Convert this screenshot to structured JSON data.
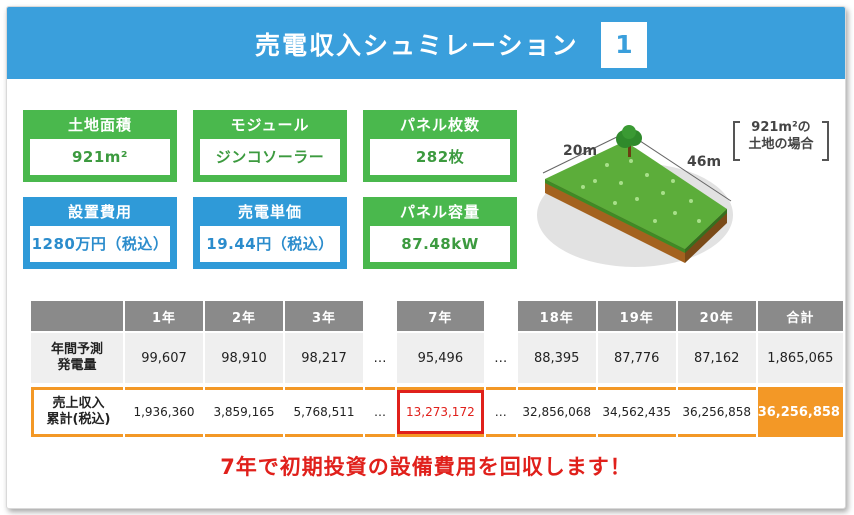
{
  "header": {
    "title": "売電収入シュミレーション",
    "number": "1"
  },
  "boxes": {
    "land_area": {
      "label": "土地面積",
      "value": "921m²"
    },
    "module": {
      "label": "モジュール",
      "value": "ジンコソーラー"
    },
    "panel_count": {
      "label": "パネル枚数",
      "value": "282枚"
    },
    "install_cost": {
      "label": "設置費用",
      "value": "1280万円（税込）"
    },
    "unit_price": {
      "label": "売電単価",
      "value": "19.44円（税込）"
    },
    "panel_capacity": {
      "label": "パネル容量",
      "value": "87.48kW"
    }
  },
  "illustration": {
    "width_label": "20m",
    "length_label": "46m",
    "note_line1": "921m²の",
    "note_line2": "土地の場合"
  },
  "table": {
    "headers": [
      "1年",
      "2年",
      "3年",
      "7年",
      "18年",
      "19年",
      "20年",
      "合計"
    ],
    "ellipsis": "…",
    "generation": {
      "label_line1": "年間予測",
      "label_line2": "発電量",
      "values": [
        "99,607",
        "98,910",
        "98,217",
        "95,496",
        "88,395",
        "87,776",
        "87,162",
        "1,865,065"
      ]
    },
    "income": {
      "label_line1": "売上収入",
      "label_line2": "累計(税込)",
      "values": [
        "1,936,360",
        "3,859,165",
        "5,768,511",
        "13,273,172",
        "32,856,068",
        "34,562,435",
        "36,256,858",
        "36,256,858"
      ]
    }
  },
  "footer": {
    "message": "7年で初期投資の設備費用を回収します！"
  },
  "colors": {
    "header_blue": "#3a9fdc",
    "green": "#4ab84d",
    "blue": "#2f9ad8",
    "orange": "#f39826",
    "red": "#e0201b"
  }
}
